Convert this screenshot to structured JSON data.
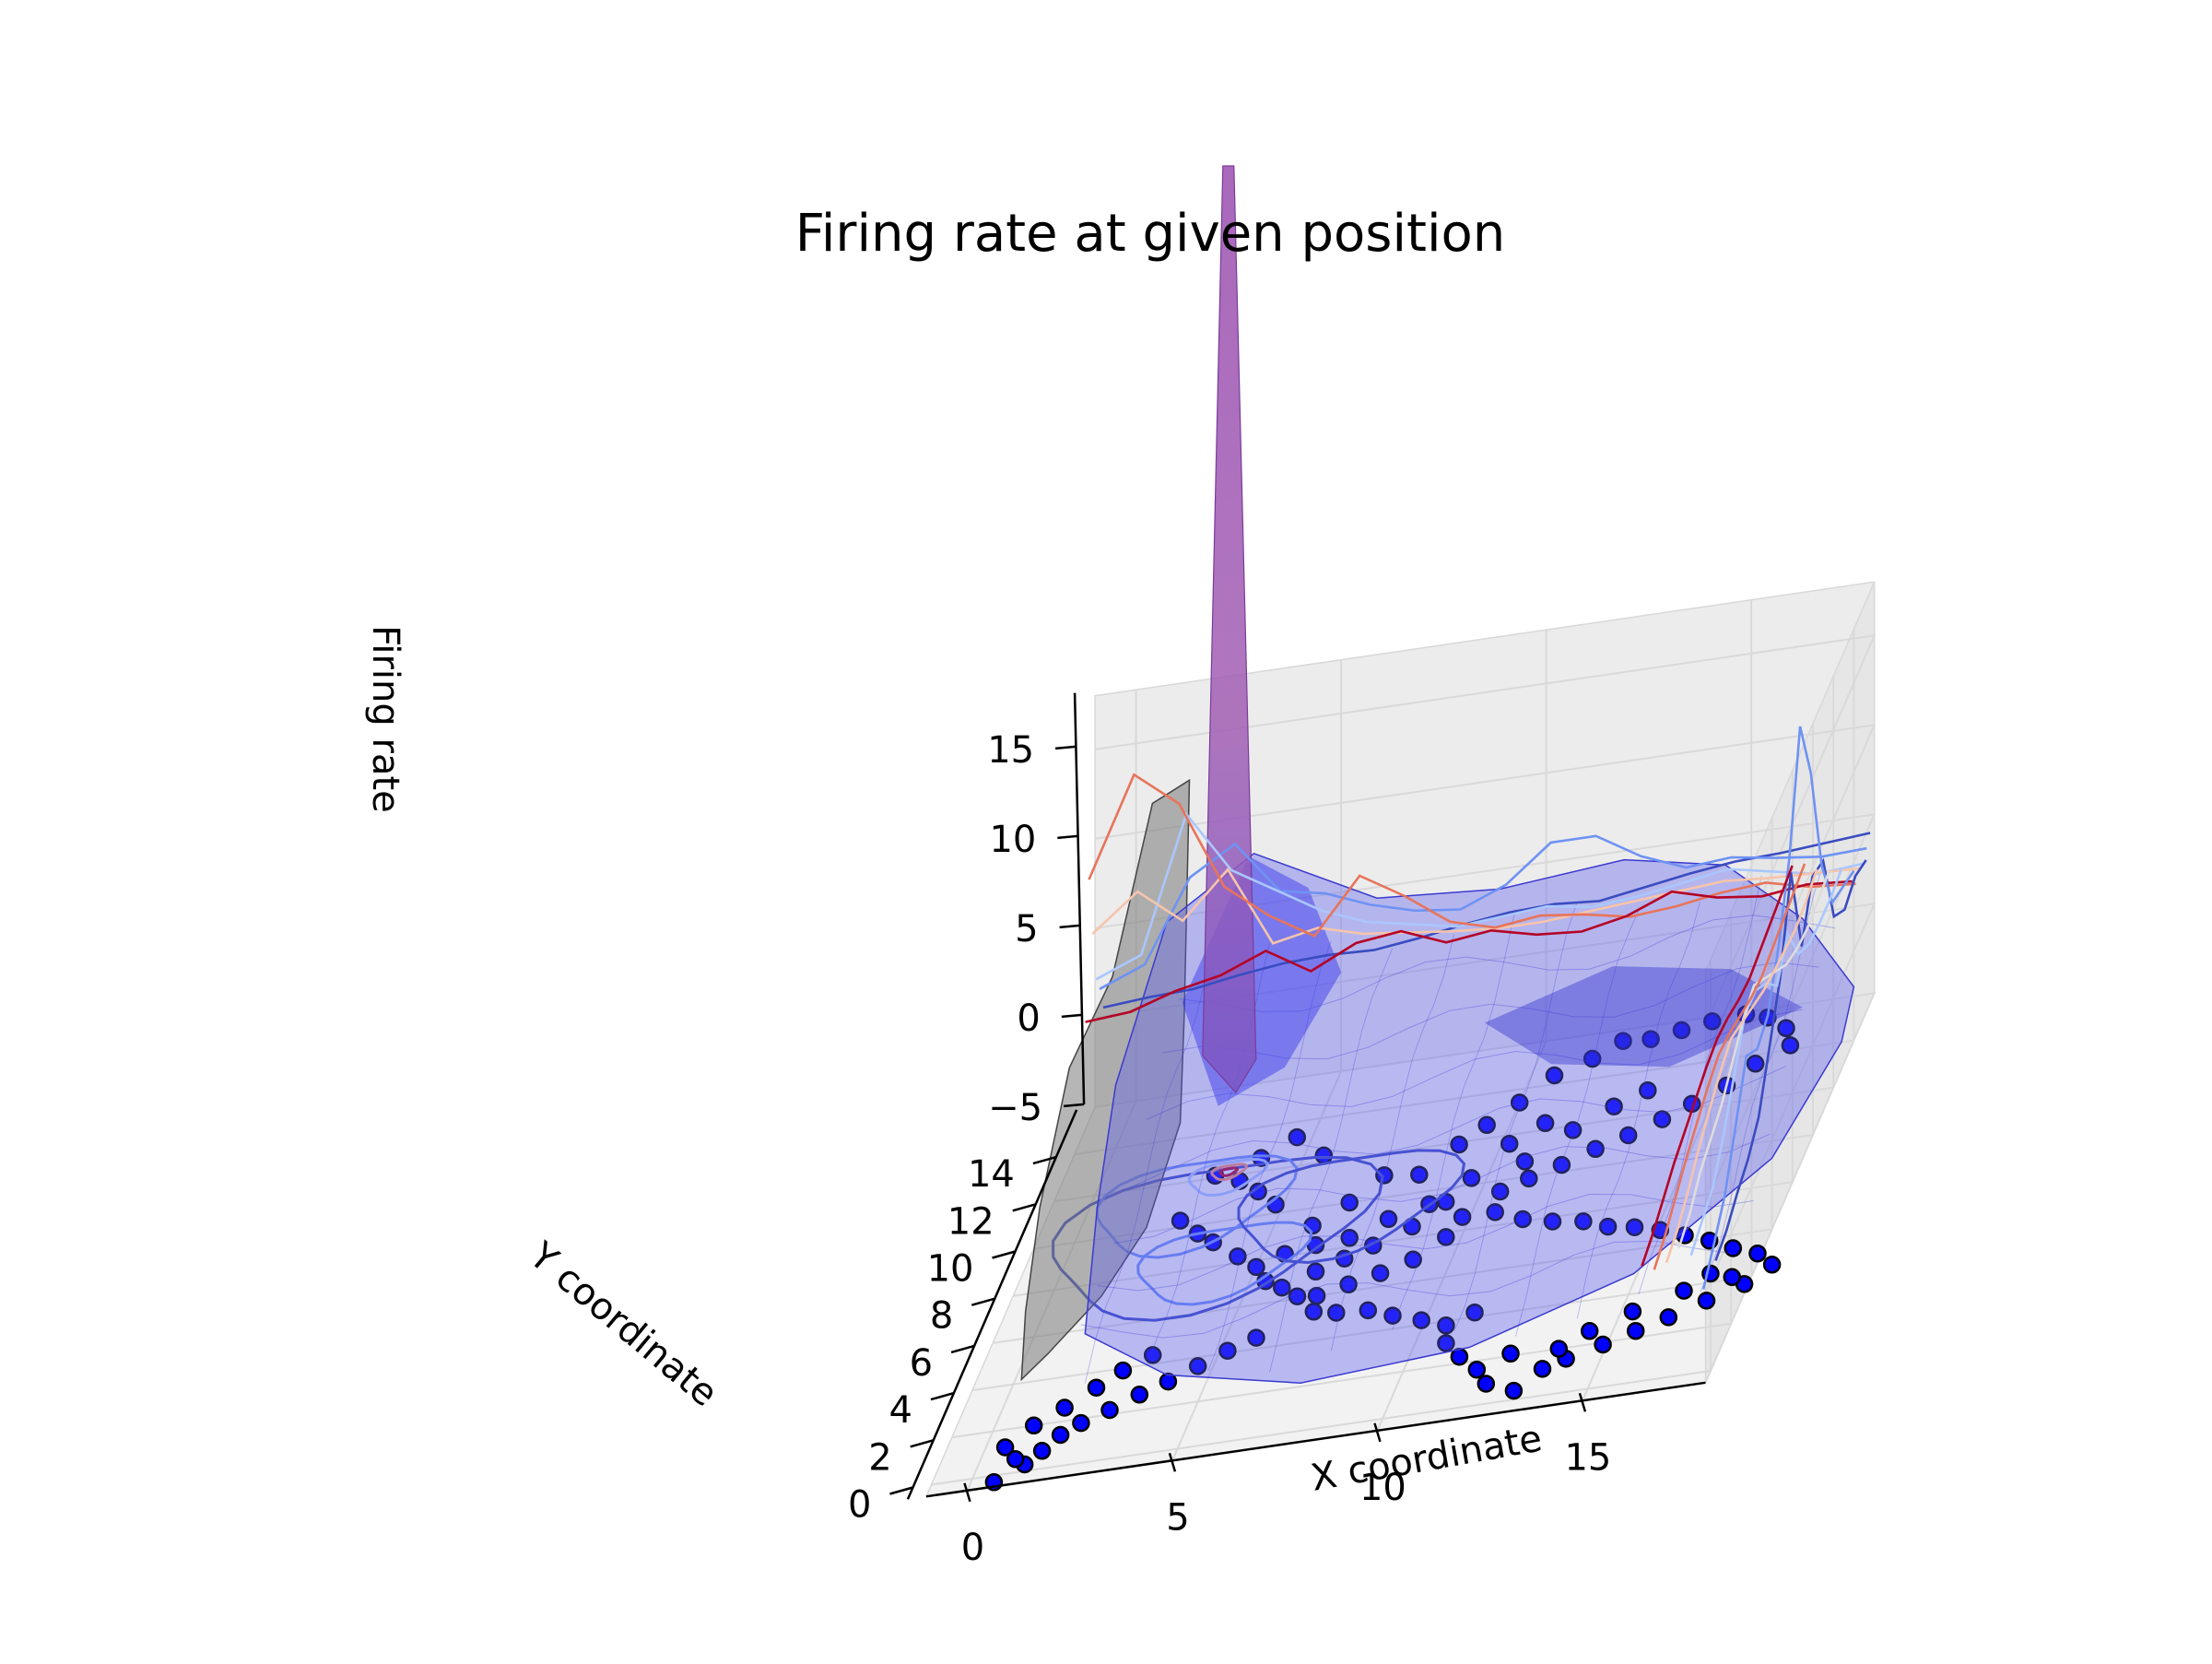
{
  "chart_data": {
    "type": "surface3d",
    "title": "Firing rate at given position",
    "xlabel": "X coordinate",
    "ylabel": "Y coordinate",
    "zlabel": "Firing rate",
    "xlim": [
      -1,
      18
    ],
    "ylim": [
      -0.5,
      16
    ],
    "zlim": [
      -5,
      18
    ],
    "x_ticks": [
      0,
      5,
      10,
      15
    ],
    "y_ticks": [
      0,
      2,
      4,
      6,
      8,
      10,
      12,
      14
    ],
    "z_ticks": [
      -5,
      0,
      5,
      10,
      15
    ],
    "x_tick_labels": [
      "0",
      "5",
      "10",
      "15"
    ],
    "y_tick_labels": [
      "0",
      "2",
      "4",
      "6",
      "8",
      "10",
      "12",
      "14"
    ],
    "z_tick_labels": [
      "−5",
      "0",
      "5",
      "10",
      "15"
    ],
    "grid": true,
    "elev": 20,
    "azim": -62,
    "x_profile_series": [
      {
        "color": "#3a4cc0",
        "values": [
          0.5,
          0.7,
          0.8,
          1.2,
          1.5,
          1.6,
          1.5,
          1.8,
          2.2,
          2.5,
          2.6,
          2.4,
          2.8,
          3.2,
          3.5,
          3.6,
          3.8,
          4.0
        ]
      },
      {
        "color": "#6f92f3",
        "values": [
          2.0,
          3.0,
          7.5,
          9.0,
          6.0,
          5.5,
          4.5,
          3.8,
          3.5,
          4.5,
          6.5,
          6.5,
          5.0,
          4.0,
          4.2,
          3.8,
          3.5,
          3.6
        ]
      },
      {
        "color": "#aac7fd",
        "values": [
          3.0,
          4.0,
          11.5,
          8.0,
          6.5,
          5.0,
          4.0,
          3.5,
          3.0,
          3.2,
          3.4,
          3.0,
          3.2,
          3.6,
          4.0,
          3.5,
          3.0,
          3.2
        ]
      },
      {
        "color": "#f5c4ac",
        "values": [
          6.0,
          8.0,
          6.0,
          8.5,
          4.0,
          4.5,
          3.8,
          3.5,
          3.2,
          3.0,
          3.0,
          3.2,
          3.4,
          3.6,
          3.8,
          3.6,
          3.5,
          3.4
        ]
      },
      {
        "color": "#e7745b",
        "values": [
          9.5,
          15.0,
          13.0,
          8.0,
          6.0,
          4.5,
          7.5,
          6.0,
          4.2,
          3.5,
          3.8,
          3.5,
          3.0,
          3.2,
          3.6,
          3.8,
          3.2,
          3.0
        ]
      },
      {
        "color": "#b40426",
        "values": [
          2.0,
          2.2,
          3.0,
          3.5,
          4.5,
          3.0,
          4.2,
          4.5,
          3.5,
          3.8,
          3.2,
          3.0,
          3.5,
          4.5,
          3.8,
          3.5,
          3.8,
          3.6
        ]
      }
    ],
    "y_profile_series": [
      {
        "color": "#3a4cc0",
        "values": [
          0.5,
          0.8,
          1.5,
          2.0,
          3.0,
          5.5,
          8.0,
          12.5,
          7.0,
          9.5,
          9.0,
          4.5,
          3.5,
          4.0,
          3.5
        ]
      },
      {
        "color": "#6f92f3",
        "values": [
          -1.0,
          0.2,
          1.5,
          4.0,
          6.5,
          5.5,
          6.0,
          8.5,
          12.0,
          18.0,
          14.0,
          7.5,
          4.0,
          3.5,
          3.0
        ]
      },
      {
        "color": "#aac7fd",
        "values": [
          1.0,
          1.5,
          2.0,
          3.5,
          5.5,
          7.5,
          7.5,
          6.5,
          5.0,
          6.5,
          4.0,
          3.2,
          3.0,
          3.0,
          3.2
        ]
      },
      {
        "color": "#dddcdc",
        "values": [
          1.5,
          2.0,
          3.0,
          3.5,
          4.0,
          5.0,
          6.0,
          6.5,
          5.5,
          4.5,
          3.5,
          3.0,
          2.8,
          3.0,
          3.2
        ]
      },
      {
        "color": "#f5c4ac",
        "values": [
          0.8,
          1.2,
          2.0,
          3.0,
          3.8,
          4.5,
          5.0,
          4.5,
          4.0,
          3.5,
          3.2,
          3.0,
          2.8,
          3.0,
          3.4
        ]
      },
      {
        "color": "#e7745b",
        "values": [
          0.5,
          1.0,
          1.8,
          2.6,
          3.2,
          3.8,
          4.2,
          4.0,
          3.6,
          3.2,
          3.0,
          3.2,
          3.4,
          3.6,
          3.8
        ]
      },
      {
        "color": "#b40426",
        "values": [
          0.8,
          1.2,
          1.8,
          2.4,
          2.8,
          3.2,
          3.6,
          3.8,
          3.6,
          3.2,
          3.0,
          3.2,
          3.4,
          3.6,
          3.8
        ]
      }
    ],
    "peak": {
      "x": 3.2,
      "y": 12.2,
      "z": 18
    },
    "surface_color": "#5b5bf0",
    "gray_surface_color": "#7a7a7a",
    "point_color": "#0000ff",
    "points": [
      [
        2.9,
        12.1
      ],
      [
        3.9,
        12.6
      ],
      [
        4.6,
        13.3
      ],
      [
        5.5,
        12.3
      ],
      [
        3.6,
        11.7
      ],
      [
        4.2,
        11.1
      ],
      [
        4.8,
        10.4
      ],
      [
        2.5,
        10.3
      ],
      [
        3.1,
        9.6
      ],
      [
        3.6,
        9.1
      ],
      [
        4.4,
        8.3
      ],
      [
        5.0,
        7.7
      ],
      [
        5.4,
        7.0
      ],
      [
        5.9,
        6.6
      ],
      [
        6.4,
        6.1
      ],
      [
        6.9,
        6.0
      ],
      [
        7.6,
        6.3
      ],
      [
        8.3,
        6.6
      ],
      [
        9.0,
        7.0
      ],
      [
        9.6,
        7.8
      ],
      [
        9.8,
        8.6
      ],
      [
        8.8,
        9.4
      ],
      [
        7.9,
        9.0
      ],
      [
        7.1,
        8.4
      ],
      [
        6.3,
        8.3
      ],
      [
        5.6,
        8.1
      ],
      [
        6.0,
        9.2
      ],
      [
        6.7,
        10.0
      ],
      [
        7.3,
        11.0
      ],
      [
        8.2,
        10.8
      ],
      [
        8.9,
        11.9
      ],
      [
        9.4,
        12.6
      ],
      [
        10.0,
        13.4
      ],
      [
        10.6,
        14.4
      ],
      [
        11.4,
        14.9
      ],
      [
        12.0,
        15.5
      ],
      [
        12.7,
        15.4
      ],
      [
        13.4,
        15.6
      ],
      [
        14.1,
        15.8
      ],
      [
        14.9,
        15.9
      ],
      [
        15.5,
        15.6
      ],
      [
        16.1,
        15.0
      ],
      [
        16.4,
        14.2
      ],
      [
        15.7,
        13.6
      ],
      [
        15.2,
        12.8
      ],
      [
        14.5,
        12.2
      ],
      [
        13.9,
        11.7
      ],
      [
        13.2,
        11.2
      ],
      [
        12.5,
        10.8
      ],
      [
        11.8,
        10.3
      ],
      [
        11.1,
        9.9
      ],
      [
        10.5,
        9.5
      ],
      [
        10.6,
        8.6
      ],
      [
        11.4,
        8.1
      ],
      [
        12.2,
        7.8
      ],
      [
        13.0,
        7.6
      ],
      [
        13.7,
        7.2
      ],
      [
        14.4,
        7.0
      ],
      [
        15.1,
        6.7
      ],
      [
        15.8,
        6.3
      ],
      [
        16.5,
        5.9
      ],
      [
        17.2,
        5.4
      ],
      [
        17.9,
        5.0
      ],
      [
        18.4,
        4.4
      ],
      [
        17.9,
        3.7
      ],
      [
        17.1,
        3.2
      ],
      [
        16.3,
        2.7
      ],
      [
        15.6,
        2.3
      ],
      [
        14.9,
        1.9
      ],
      [
        14.1,
        1.5
      ],
      [
        13.6,
        1.2
      ],
      [
        13.1,
        0.4
      ],
      [
        12.3,
        0.9
      ],
      [
        11.9,
        1.6
      ],
      [
        11.3,
        2.3
      ],
      [
        10.8,
        3.0
      ],
      [
        10.6,
        3.8
      ],
      [
        9.9,
        4.2
      ],
      [
        9.1,
        4.6
      ],
      [
        8.4,
        5.0
      ],
      [
        7.6,
        5.1
      ],
      [
        7.0,
        5.3
      ],
      [
        5.8,
        4.5
      ],
      [
        5.2,
        4.1
      ],
      [
        4.6,
        3.6
      ],
      [
        4.0,
        3.1
      ],
      [
        3.4,
        2.7
      ],
      [
        2.8,
        2.2
      ],
      [
        2.2,
        1.8
      ],
      [
        1.8,
        1.4
      ],
      [
        1.5,
        0.8
      ],
      [
        1.2,
        0.3
      ],
      [
        0.6,
        -0.3
      ],
      [
        0.9,
        0.6
      ],
      [
        0.5,
        1.2
      ],
      [
        1.0,
        2.0
      ],
      [
        1.6,
        2.6
      ],
      [
        2.2,
        3.3
      ],
      [
        2.7,
        3.9
      ],
      [
        3.3,
        4.4
      ],
      [
        12.5,
        12.6
      ],
      [
        13.2,
        13.1
      ],
      [
        11.7,
        11.8
      ],
      [
        10.9,
        12.3
      ],
      [
        10.2,
        11.6
      ],
      [
        10.8,
        10.7
      ],
      [
        9.6,
        10.3
      ],
      [
        9.2,
        9.4
      ],
      [
        8.6,
        8.5
      ],
      [
        7.8,
        7.9
      ],
      [
        16.9,
        4.4
      ],
      [
        16.4,
        3.8
      ],
      [
        17.5,
        4.1
      ],
      [
        15.3,
        3.2
      ],
      [
        14.4,
        2.6
      ],
      [
        13.8,
        2.0
      ],
      [
        12.6,
        2.1
      ],
      [
        11.2,
        4.2
      ],
      [
        6.6,
        7.1
      ],
      [
        7.2,
        7.5
      ]
    ]
  }
}
